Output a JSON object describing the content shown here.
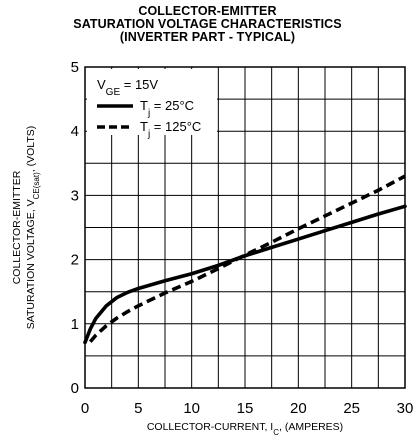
{
  "chart_data": {
    "type": "line",
    "title": [
      "COLLECTOR-EMITTER",
      "SATURATION VOLTAGE CHARACTERISTICS",
      "(INVERTER PART - TYPICAL)"
    ],
    "xlabel": {
      "prefix": "COLLECTOR-CURRENT, I",
      "sub": "C",
      "suffix": ", (AMPERES)"
    },
    "ylabel": {
      "line1": "COLLECTOR-EMITTER",
      "line2_prefix": "SATURATION VOLTAGE, V",
      "line2_sub": "CE(sat)",
      "line2_suffix": ", (VOLTS)"
    },
    "xlim": [
      0,
      30
    ],
    "ylim": [
      0,
      5
    ],
    "xticks": [
      0,
      5,
      10,
      15,
      20,
      25,
      30
    ],
    "yticks": [
      0,
      1,
      2,
      3,
      4,
      5
    ],
    "grid": true,
    "legend": {
      "condition_prefix": "V",
      "condition_sub": "GE",
      "condition_suffix": " = 15V",
      "placement": "top-left"
    },
    "series": [
      {
        "name": {
          "prefix": "T",
          "sub": "j",
          "suffix": " = 25°C"
        },
        "style": "solid",
        "points": [
          [
            0,
            0.71
          ],
          [
            0.5,
            0.92
          ],
          [
            1,
            1.08
          ],
          [
            2,
            1.28
          ],
          [
            3,
            1.41
          ],
          [
            4,
            1.49
          ],
          [
            5,
            1.55
          ],
          [
            7.5,
            1.67
          ],
          [
            10,
            1.78
          ],
          [
            12.5,
            1.91
          ],
          [
            15,
            2.06
          ],
          [
            17.5,
            2.19
          ],
          [
            20,
            2.32
          ],
          [
            22.5,
            2.45
          ],
          [
            25,
            2.58
          ],
          [
            27.5,
            2.71
          ],
          [
            30,
            2.83
          ]
        ]
      },
      {
        "name": {
          "prefix": "T",
          "sub": "j",
          "suffix": " = 125°C"
        },
        "style": "dashed",
        "points": [
          [
            0.5,
            0.72
          ],
          [
            1,
            0.82
          ],
          [
            2,
            0.97
          ],
          [
            3,
            1.09
          ],
          [
            4,
            1.19
          ],
          [
            5,
            1.28
          ],
          [
            7.5,
            1.48
          ],
          [
            10,
            1.66
          ],
          [
            12.5,
            1.86
          ],
          [
            15,
            2.07
          ],
          [
            17.5,
            2.27
          ],
          [
            20,
            2.48
          ],
          [
            22.5,
            2.68
          ],
          [
            25,
            2.88
          ],
          [
            27.5,
            3.08
          ],
          [
            30,
            3.3
          ]
        ]
      }
    ]
  }
}
